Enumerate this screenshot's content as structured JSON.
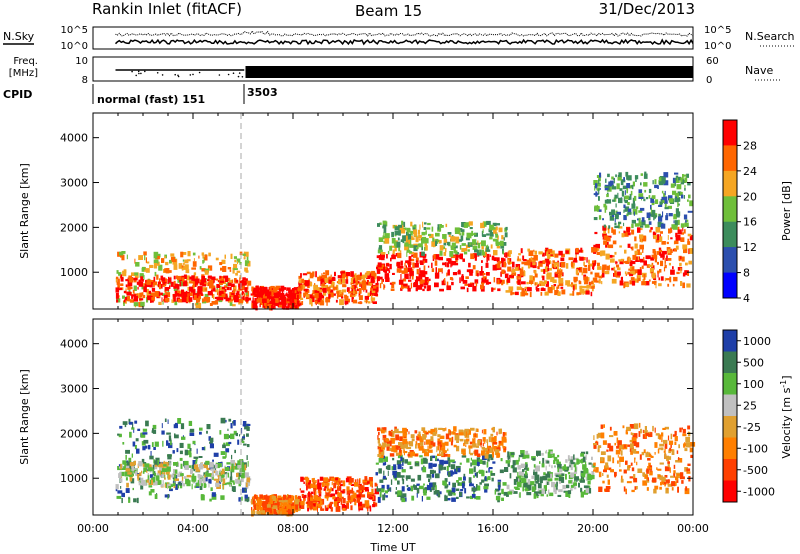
{
  "header": {
    "station": "Rankin Inlet (fitACF)",
    "beam": "Beam 15",
    "date": "31/Dec/2013"
  },
  "params": {
    "nsky_label": "N.Sky",
    "nsearch_label": "N.Search",
    "freq_label_1": "Freq.",
    "freq_label_2": "[MHz]",
    "nave_label": "Nave",
    "cpid_label": "CPID",
    "noise_ticks_left": [
      "10^5",
      "10^0"
    ],
    "noise_ticks_right": [
      "10^5",
      "10^0"
    ],
    "freq_ticks": [
      "10",
      "8"
    ],
    "nave_ticks": [
      "60",
      "0"
    ],
    "cpid_segments": [
      {
        "label": "normal (fast) 151",
        "start_hour": 0.9,
        "end_hour": 6.05
      },
      {
        "label": "3503",
        "start_hour": 6.05,
        "end_hour": 24
      }
    ]
  },
  "chart_data": [
    {
      "type": "heatmap",
      "name": "power",
      "title": "",
      "xlabel": "",
      "ylabel": "Slant Range [km]",
      "xlim": [
        0,
        24
      ],
      "ylim": [
        180,
        4550
      ],
      "yticks": [
        "1000",
        "2000",
        "3000",
        "4000"
      ],
      "colorbar": {
        "label": "Power [dB]",
        "ticks": [
          "28",
          "24",
          "20",
          "16",
          "12",
          "8",
          "4"
        ],
        "colors": [
          "#ff0000",
          "#ff6600",
          "#f5a623",
          "#6fbf3a",
          "#3c8c5c",
          "#2c4fae",
          "#0000ff"
        ]
      },
      "scatter_regions": [
        {
          "x": [
            0.9,
            6.2
          ],
          "y": [
            250,
            1450
          ],
          "level": 20
        },
        {
          "x": [
            0.9,
            6.2
          ],
          "y": [
            350,
            900
          ],
          "level": 28
        },
        {
          "x": [
            6.3,
            8.2
          ],
          "y": [
            200,
            650
          ],
          "level": 28
        },
        {
          "x": [
            8.2,
            11.3
          ],
          "y": [
            300,
            1000
          ],
          "level": 24
        },
        {
          "x": [
            11.3,
            16.5
          ],
          "y": [
            600,
            1400
          ],
          "level": 28
        },
        {
          "x": [
            11.3,
            16.5
          ],
          "y": [
            1400,
            2100
          ],
          "level": 16
        },
        {
          "x": [
            16.5,
            20.0
          ],
          "y": [
            500,
            1500
          ],
          "level": 24
        },
        {
          "x": [
            20.0,
            23.9
          ],
          "y": [
            700,
            2000
          ],
          "level": 24
        },
        {
          "x": [
            20.0,
            23.9
          ],
          "y": [
            2000,
            3200
          ],
          "level": 12
        }
      ]
    },
    {
      "type": "heatmap",
      "name": "velocity",
      "title": "",
      "xlabel": "Time UT",
      "ylabel": "Slant Range [km]",
      "xlim": [
        0,
        24
      ],
      "ylim": [
        180,
        4550
      ],
      "xticks": [
        "00:00",
        "04:00",
        "08:00",
        "12:00",
        "16:00",
        "20:00",
        "00:00"
      ],
      "yticks": [
        "1000",
        "2000",
        "3000",
        "4000"
      ],
      "colorbar": {
        "label": "Velocity [m s-1]",
        "ticks": [
          "1000",
          "500",
          "100",
          "25",
          "-25",
          "-100",
          "-500",
          "-1000"
        ],
        "colors": [
          "#1f3fa8",
          "#3a7a52",
          "#58b83a",
          "#c0c0c0",
          "#e0a030",
          "#ff7f00",
          "#ff4000",
          "#ff0000"
        ]
      },
      "scatter_regions": [
        {
          "x": [
            0.9,
            6.2
          ],
          "y": [
            500,
            2300
          ],
          "level": 500
        },
        {
          "x": [
            0.9,
            6.2
          ],
          "y": [
            800,
            1350
          ],
          "level": 0
        },
        {
          "x": [
            6.3,
            8.2
          ],
          "y": [
            200,
            600
          ],
          "level": -100
        },
        {
          "x": [
            8.2,
            11.3
          ],
          "y": [
            300,
            1000
          ],
          "level": -500
        },
        {
          "x": [
            11.3,
            16.5
          ],
          "y": [
            500,
            1500
          ],
          "level": 500
        },
        {
          "x": [
            11.3,
            16.5
          ],
          "y": [
            1500,
            2100
          ],
          "level": -100
        },
        {
          "x": [
            16.5,
            20.0
          ],
          "y": [
            600,
            1600
          ],
          "level": 100
        },
        {
          "x": [
            20.0,
            23.9
          ],
          "y": [
            700,
            2200
          ],
          "level": -100
        }
      ]
    }
  ]
}
